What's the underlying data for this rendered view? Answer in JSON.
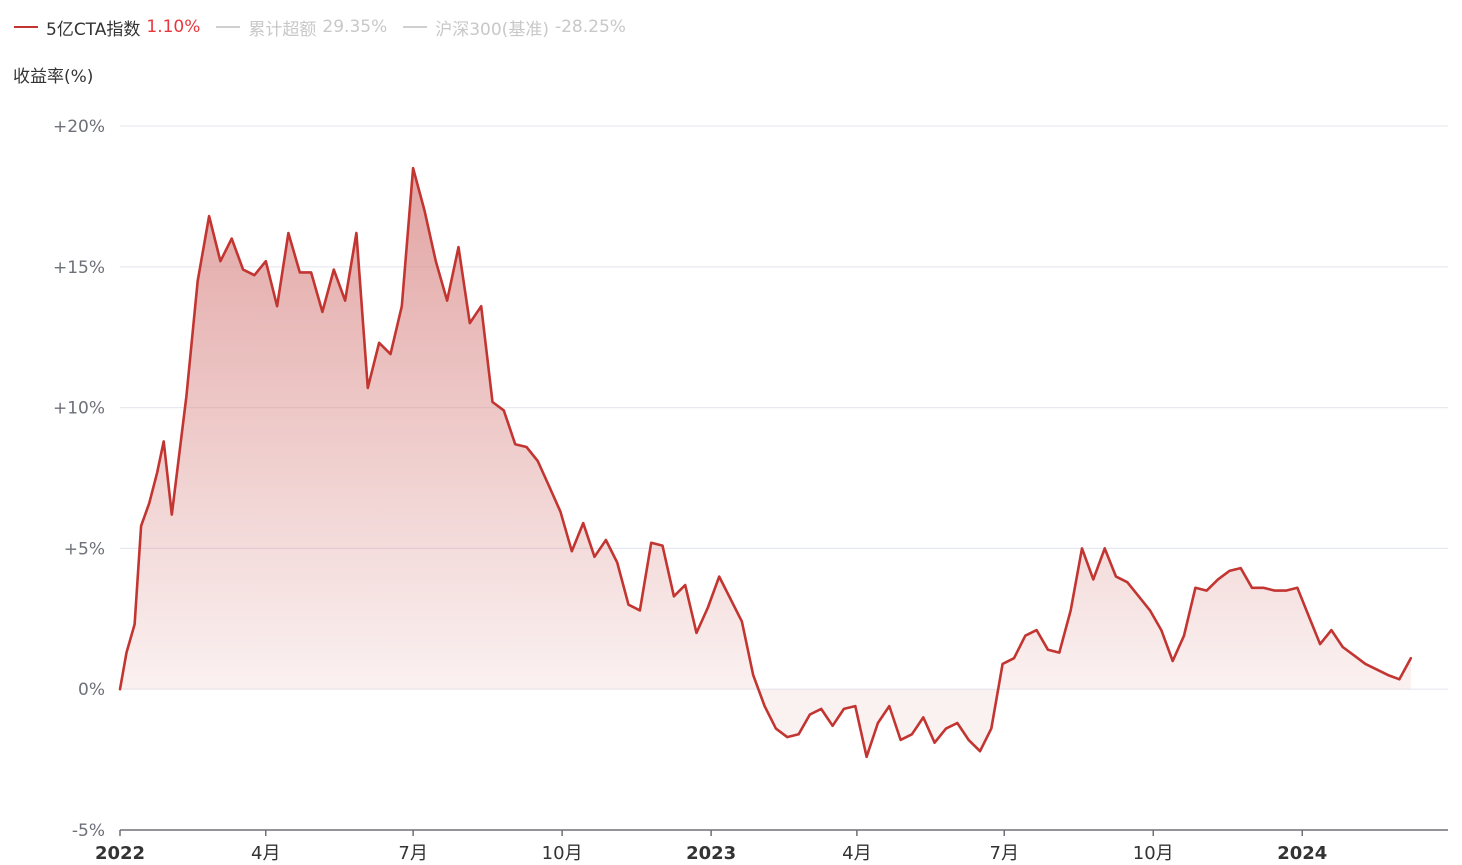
{
  "legend": [
    {
      "name": "5亿CTA指数",
      "value": "1.10%",
      "color": "#c23531",
      "name_color": "#333333",
      "value_color": "#e8383d",
      "active": true
    },
    {
      "name": "累计超额",
      "value": "29.35%",
      "color": "#d0d0d0",
      "name_color": "#c8c8c8",
      "value_color": "#c8c8c8",
      "active": false
    },
    {
      "name": "沪深300(基准)",
      "value": "-28.25%",
      "color": "#d0d0d0",
      "name_color": "#c8c8c8",
      "value_color": "#c8c8c8",
      "active": false
    }
  ],
  "chart_data": {
    "type": "area",
    "ylabel": "收益率(%)",
    "ylim": [
      -5,
      20
    ],
    "y_ticks": [
      {
        "value": 20,
        "label": "+20%"
      },
      {
        "value": 15,
        "label": "+15%"
      },
      {
        "value": 10,
        "label": "+10%"
      },
      {
        "value": 5,
        "label": "+5%"
      },
      {
        "value": 0,
        "label": "0%"
      },
      {
        "value": -5,
        "label": "-5%"
      }
    ],
    "xlim": [
      "2022-01-01",
      "2024-03-31"
    ],
    "x_ticks": [
      {
        "date": "2022-01-01",
        "label": "2022",
        "bold": true
      },
      {
        "date": "2022-04-01",
        "label": "4月",
        "bold": false
      },
      {
        "date": "2022-07-01",
        "label": "7月",
        "bold": false
      },
      {
        "date": "2022-10-01",
        "label": "10月",
        "bold": false
      },
      {
        "date": "2023-01-01",
        "label": "2023",
        "bold": true
      },
      {
        "date": "2023-04-01",
        "label": "4月",
        "bold": false
      },
      {
        "date": "2023-07-01",
        "label": "7月",
        "bold": false
      },
      {
        "date": "2023-10-01",
        "label": "10月",
        "bold": false
      },
      {
        "date": "2024-01-01",
        "label": "2024",
        "bold": true
      }
    ],
    "grid": true,
    "colors": {
      "line": "#c23531",
      "area_top": "#d98a88",
      "grid": "#e6e9f0",
      "axis": "#6e7079",
      "tick_text": "#6e7079",
      "x_text": "#333333"
    },
    "series": [
      {
        "name": "5亿CTA指数",
        "points": [
          [
            "2022-01-01",
            0.0
          ],
          [
            "2022-01-05",
            1.3
          ],
          [
            "2022-01-10",
            2.3
          ],
          [
            "2022-01-14",
            5.8
          ],
          [
            "2022-01-19",
            6.6
          ],
          [
            "2022-01-24",
            7.7
          ],
          [
            "2022-01-28",
            8.8
          ],
          [
            "2022-02-02",
            6.2
          ],
          [
            "2022-02-11",
            10.4
          ],
          [
            "2022-02-18",
            14.5
          ],
          [
            "2022-02-25",
            16.8
          ],
          [
            "2022-03-04",
            15.2
          ],
          [
            "2022-03-11",
            16.0
          ],
          [
            "2022-03-18",
            14.9
          ],
          [
            "2022-03-25",
            14.7
          ],
          [
            "2022-04-01",
            15.2
          ],
          [
            "2022-04-08",
            13.6
          ],
          [
            "2022-04-15",
            16.2
          ],
          [
            "2022-04-22",
            14.8
          ],
          [
            "2022-04-29",
            14.8
          ],
          [
            "2022-05-06",
            13.4
          ],
          [
            "2022-05-13",
            14.9
          ],
          [
            "2022-05-20",
            13.8
          ],
          [
            "2022-05-27",
            16.2
          ],
          [
            "2022-06-03",
            10.7
          ],
          [
            "2022-06-10",
            12.3
          ],
          [
            "2022-06-17",
            11.9
          ],
          [
            "2022-06-24",
            13.6
          ],
          [
            "2022-07-01",
            18.5
          ],
          [
            "2022-07-08",
            17.0
          ],
          [
            "2022-07-15",
            15.2
          ],
          [
            "2022-07-22",
            13.8
          ],
          [
            "2022-07-29",
            15.7
          ],
          [
            "2022-08-05",
            13.0
          ],
          [
            "2022-08-12",
            13.6
          ],
          [
            "2022-08-19",
            10.2
          ],
          [
            "2022-08-26",
            9.9
          ],
          [
            "2022-09-02",
            8.7
          ],
          [
            "2022-09-09",
            8.6
          ],
          [
            "2022-09-16",
            8.1
          ],
          [
            "2022-09-23",
            7.2
          ],
          [
            "2022-09-30",
            6.3
          ],
          [
            "2022-10-07",
            4.9
          ],
          [
            "2022-10-14",
            5.9
          ],
          [
            "2022-10-21",
            4.7
          ],
          [
            "2022-10-28",
            5.3
          ],
          [
            "2022-11-04",
            4.5
          ],
          [
            "2022-11-11",
            3.0
          ],
          [
            "2022-11-18",
            2.8
          ],
          [
            "2022-11-25",
            5.2
          ],
          [
            "2022-12-02",
            5.1
          ],
          [
            "2022-12-09",
            3.3
          ],
          [
            "2022-12-16",
            3.7
          ],
          [
            "2022-12-23",
            2.0
          ],
          [
            "2022-12-30",
            2.9
          ],
          [
            "2023-01-06",
            4.0
          ],
          [
            "2023-01-13",
            3.2
          ],
          [
            "2023-01-20",
            2.4
          ],
          [
            "2023-01-27",
            0.5
          ],
          [
            "2023-02-03",
            -0.6
          ],
          [
            "2023-02-10",
            -1.4
          ],
          [
            "2023-02-17",
            -1.7
          ],
          [
            "2023-02-24",
            -1.6
          ],
          [
            "2023-03-03",
            -0.9
          ],
          [
            "2023-03-10",
            -0.7
          ],
          [
            "2023-03-17",
            -1.3
          ],
          [
            "2023-03-24",
            -0.7
          ],
          [
            "2023-03-31",
            -0.6
          ],
          [
            "2023-04-07",
            -2.4
          ],
          [
            "2023-04-14",
            -1.2
          ],
          [
            "2023-04-21",
            -0.6
          ],
          [
            "2023-04-28",
            -1.8
          ],
          [
            "2023-05-05",
            -1.6
          ],
          [
            "2023-05-12",
            -1.0
          ],
          [
            "2023-05-19",
            -1.9
          ],
          [
            "2023-05-26",
            -1.4
          ],
          [
            "2023-06-02",
            -1.2
          ],
          [
            "2023-06-09",
            -1.8
          ],
          [
            "2023-06-16",
            -2.2
          ],
          [
            "2023-06-23",
            -1.4
          ],
          [
            "2023-06-30",
            0.9
          ],
          [
            "2023-07-07",
            1.1
          ],
          [
            "2023-07-14",
            1.9
          ],
          [
            "2023-07-21",
            2.1
          ],
          [
            "2023-07-28",
            1.4
          ],
          [
            "2023-08-04",
            1.3
          ],
          [
            "2023-08-11",
            2.8
          ],
          [
            "2023-08-18",
            5.0
          ],
          [
            "2023-08-25",
            3.9
          ],
          [
            "2023-09-01",
            5.0
          ],
          [
            "2023-09-08",
            4.0
          ],
          [
            "2023-09-15",
            3.8
          ],
          [
            "2023-09-22",
            3.3
          ],
          [
            "2023-09-29",
            2.8
          ],
          [
            "2023-10-06",
            2.1
          ],
          [
            "2023-10-13",
            1.0
          ],
          [
            "2023-10-20",
            1.9
          ],
          [
            "2023-10-27",
            3.6
          ],
          [
            "2023-11-03",
            3.5
          ],
          [
            "2023-11-10",
            3.9
          ],
          [
            "2023-11-17",
            4.2
          ],
          [
            "2023-11-24",
            4.3
          ],
          [
            "2023-12-01",
            3.6
          ],
          [
            "2023-12-08",
            3.6
          ],
          [
            "2023-12-15",
            3.5
          ],
          [
            "2023-12-22",
            3.5
          ],
          [
            "2023-12-29",
            3.6
          ],
          [
            "2024-01-05",
            2.6
          ],
          [
            "2024-01-12",
            1.6
          ],
          [
            "2024-01-19",
            2.1
          ],
          [
            "2024-01-26",
            1.5
          ],
          [
            "2024-02-02",
            1.2
          ],
          [
            "2024-02-09",
            0.9
          ],
          [
            "2024-02-23",
            0.5
          ],
          [
            "2024-03-01",
            0.35
          ],
          [
            "2024-03-08",
            1.1
          ]
        ]
      }
    ]
  }
}
